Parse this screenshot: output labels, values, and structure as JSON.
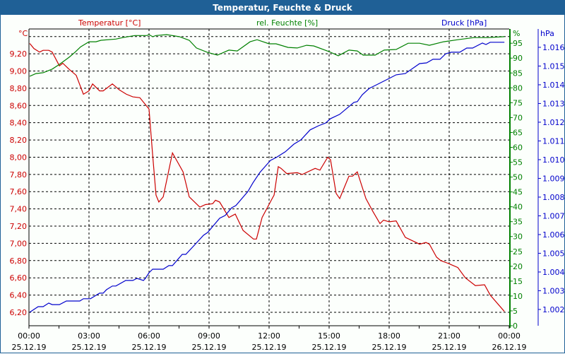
{
  "window_title": "Temperatur, Feuchte & Druck",
  "chart_data": {
    "type": "line",
    "title": "Temperatur, Feuchte & Druck",
    "xlabel": "",
    "x_unit": "hours since 25.12.19 00:00",
    "xlim": [
      0,
      24
    ],
    "x_ticks": [
      {
        "h": 0,
        "time": "00:00",
        "date": "25.12.19"
      },
      {
        "h": 3,
        "time": "03:00",
        "date": "25.12.19"
      },
      {
        "h": 6,
        "time": "06:00",
        "date": "25.12.19"
      },
      {
        "h": 9,
        "time": "09:00",
        "date": "25.12.19"
      },
      {
        "h": 12,
        "time": "12:00",
        "date": "25.12.19"
      },
      {
        "h": 15,
        "time": "15:00",
        "date": "25.12.19"
      },
      {
        "h": 18,
        "time": "18:00",
        "date": "25.12.19"
      },
      {
        "h": 21,
        "time": "21:00",
        "date": "25.12.19"
      },
      {
        "h": 24,
        "time": "00:00",
        "date": "26.12.19"
      }
    ],
    "grid": true,
    "series": [
      {
        "name": "Temperatur [°C]",
        "unit": "°C",
        "color": "#cc0000",
        "axis": "left",
        "ylim": [
          6.044,
          9.488
        ],
        "ticks": [
          "6,20",
          "6,40",
          "6,60",
          "6,80",
          "7,00",
          "7,20",
          "7,40",
          "7,60",
          "7,80",
          "8,00",
          "8,20",
          "8,40",
          "8,60",
          "8,80",
          "9,00",
          "9,20"
        ],
        "tick_values": [
          6.2,
          6.4,
          6.6,
          6.8,
          7.0,
          7.2,
          7.4,
          7.6,
          7.8,
          8.0,
          8.2,
          8.4,
          8.6,
          8.8,
          9.0,
          9.2
        ],
        "points": [
          [
            0.04,
            9.32
          ],
          [
            0.25,
            9.26
          ],
          [
            0.53,
            9.22
          ],
          [
            0.71,
            9.24
          ],
          [
            0.99,
            9.24
          ],
          [
            1.16,
            9.22
          ],
          [
            1.52,
            9.06
          ],
          [
            1.69,
            9.09
          ],
          [
            2.01,
            9.02
          ],
          [
            2.36,
            8.95
          ],
          [
            2.72,
            8.73
          ],
          [
            3.0,
            8.77
          ],
          [
            3.18,
            8.85
          ],
          [
            3.53,
            8.77
          ],
          [
            3.71,
            8.77
          ],
          [
            4.17,
            8.85
          ],
          [
            4.52,
            8.78
          ],
          [
            4.87,
            8.73
          ],
          [
            5.19,
            8.7
          ],
          [
            5.54,
            8.69
          ],
          [
            6.0,
            8.56
          ],
          [
            6.18,
            8.03
          ],
          [
            6.35,
            7.56
          ],
          [
            6.49,
            7.48
          ],
          [
            6.71,
            7.54
          ],
          [
            7.17,
            8.05
          ],
          [
            7.7,
            7.83
          ],
          [
            8.01,
            7.54
          ],
          [
            8.54,
            7.42
          ],
          [
            8.82,
            7.45
          ],
          [
            9.18,
            7.46
          ],
          [
            9.32,
            7.5
          ],
          [
            9.53,
            7.48
          ],
          [
            9.99,
            7.3
          ],
          [
            10.31,
            7.34
          ],
          [
            10.7,
            7.15
          ],
          [
            11.22,
            7.05
          ],
          [
            11.37,
            7.05
          ],
          [
            11.65,
            7.3
          ],
          [
            12.11,
            7.5
          ],
          [
            12.25,
            7.56
          ],
          [
            12.46,
            7.89
          ],
          [
            12.6,
            7.87
          ],
          [
            12.88,
            7.81
          ],
          [
            13.41,
            7.82
          ],
          [
            13.66,
            7.8
          ],
          [
            14.3,
            7.87
          ],
          [
            14.54,
            7.85
          ],
          [
            14.93,
            8.0
          ],
          [
            15.07,
            7.97
          ],
          [
            15.35,
            7.58
          ],
          [
            15.53,
            7.52
          ],
          [
            15.99,
            7.78
          ],
          [
            16.17,
            7.78
          ],
          [
            16.41,
            7.83
          ],
          [
            16.84,
            7.52
          ],
          [
            17.19,
            7.37
          ],
          [
            17.54,
            7.23
          ],
          [
            17.72,
            7.27
          ],
          [
            18.0,
            7.25
          ],
          [
            18.35,
            7.26
          ],
          [
            18.81,
            7.07
          ],
          [
            19.17,
            7.03
          ],
          [
            19.52,
            6.99
          ],
          [
            19.84,
            7.01
          ],
          [
            20.01,
            6.99
          ],
          [
            20.37,
            6.84
          ],
          [
            20.58,
            6.8
          ],
          [
            20.93,
            6.77
          ],
          [
            21.43,
            6.72
          ],
          [
            21.81,
            6.6
          ],
          [
            22.31,
            6.51
          ],
          [
            22.77,
            6.52
          ],
          [
            23.05,
            6.4
          ],
          [
            23.76,
            6.21
          ]
        ]
      },
      {
        "name": "rel. Feuchte [%]",
        "unit": "%",
        "color": "#008000",
        "axis": "right",
        "ylim": [
          0,
          99.8
        ],
        "ticks": [
          "0",
          "5",
          "10",
          "15",
          "20",
          "25",
          "30",
          "35",
          "40",
          "45",
          "50",
          "55",
          "60",
          "65",
          "70",
          "75",
          "80",
          "85",
          "90",
          "95"
        ],
        "tick_values": [
          0,
          5,
          10,
          15,
          20,
          25,
          30,
          35,
          40,
          45,
          50,
          55,
          60,
          65,
          70,
          75,
          80,
          85,
          90,
          95
        ],
        "points": [
          [
            0.04,
            83.9
          ],
          [
            0.35,
            84.8
          ],
          [
            0.71,
            85.1
          ],
          [
            1.16,
            86.3
          ],
          [
            1.52,
            87.9
          ],
          [
            2.01,
            90.3
          ],
          [
            2.29,
            91.9
          ],
          [
            2.58,
            93.8
          ],
          [
            3.0,
            95.5
          ],
          [
            3.35,
            95.5
          ],
          [
            3.6,
            96.0
          ],
          [
            4.34,
            96.4
          ],
          [
            4.69,
            96.9
          ],
          [
            5.29,
            97.6
          ],
          [
            5.89,
            97.6
          ],
          [
            6.0,
            97.9
          ],
          [
            6.18,
            97.2
          ],
          [
            6.35,
            97.6
          ],
          [
            6.88,
            97.9
          ],
          [
            7.52,
            97.2
          ],
          [
            8.01,
            96.0
          ],
          [
            8.37,
            93.4
          ],
          [
            8.93,
            91.9
          ],
          [
            9.42,
            91.0
          ],
          [
            9.99,
            92.7
          ],
          [
            10.41,
            92.4
          ],
          [
            11.05,
            95.5
          ],
          [
            11.4,
            96.2
          ],
          [
            12.0,
            94.8
          ],
          [
            12.35,
            94.8
          ],
          [
            12.95,
            93.6
          ],
          [
            13.41,
            93.4
          ],
          [
            13.87,
            94.3
          ],
          [
            14.23,
            94.1
          ],
          [
            15.0,
            92.2
          ],
          [
            15.46,
            90.8
          ],
          [
            15.99,
            92.7
          ],
          [
            16.41,
            92.4
          ],
          [
            16.7,
            91.0
          ],
          [
            17.3,
            91.0
          ],
          [
            17.75,
            92.7
          ],
          [
            18.35,
            92.9
          ],
          [
            18.95,
            95.0
          ],
          [
            19.52,
            95.0
          ],
          [
            20.01,
            94.3
          ],
          [
            20.72,
            95.5
          ],
          [
            21.43,
            96.2
          ],
          [
            22.24,
            96.9
          ],
          [
            22.94,
            96.9
          ],
          [
            23.76,
            97.2
          ]
        ]
      },
      {
        "name": "Druck [hPa]",
        "unit": "hPa",
        "color": "#0000cc",
        "axis": "right-outer",
        "ylim": [
          1.00113,
          1.01698
        ],
        "ticks": [
          "1.002",
          "1.003",
          "1.004",
          "1.005",
          "1.006",
          "1.007",
          "1.008",
          "1.009",
          "1.010",
          "1.011",
          "1.012",
          "1.013",
          "1.014",
          "1.015",
          "1.016"
        ],
        "tick_values": [
          1.002,
          1.003,
          1.004,
          1.005,
          1.006,
          1.007,
          1.008,
          1.009,
          1.01,
          1.011,
          1.012,
          1.013,
          1.014,
          1.015,
          1.016
        ],
        "points": [
          [
            0.04,
            1.00185
          ],
          [
            0.46,
            1.00215
          ],
          [
            0.71,
            1.00215
          ],
          [
            0.99,
            1.00234
          ],
          [
            1.16,
            1.00226
          ],
          [
            1.52,
            1.00226
          ],
          [
            1.87,
            1.00245
          ],
          [
            2.54,
            1.00245
          ],
          [
            2.72,
            1.00257
          ],
          [
            3.07,
            1.00257
          ],
          [
            3.53,
            1.00287
          ],
          [
            3.71,
            1.00287
          ],
          [
            3.88,
            1.00306
          ],
          [
            4.17,
            1.00325
          ],
          [
            4.34,
            1.00325
          ],
          [
            4.84,
            1.00355
          ],
          [
            5.19,
            1.00355
          ],
          [
            5.4,
            1.00366
          ],
          [
            5.72,
            1.00355
          ],
          [
            5.82,
            1.00366
          ],
          [
            6.0,
            1.00396
          ],
          [
            6.18,
            1.00415
          ],
          [
            6.71,
            1.00415
          ],
          [
            6.99,
            1.00434
          ],
          [
            7.17,
            1.00434
          ],
          [
            7.66,
            1.00494
          ],
          [
            7.84,
            1.00494
          ],
          [
            8.37,
            1.00555
          ],
          [
            8.72,
            1.00596
          ],
          [
            8.93,
            1.00611
          ],
          [
            9.53,
            1.00687
          ],
          [
            9.81,
            1.00702
          ],
          [
            10.13,
            1.00743
          ],
          [
            10.34,
            1.00755
          ],
          [
            10.94,
            1.0083
          ],
          [
            11.19,
            1.00876
          ],
          [
            11.54,
            1.00932
          ],
          [
            12.07,
            1.00996
          ],
          [
            12.35,
            1.01011
          ],
          [
            12.81,
            1.01042
          ],
          [
            13.24,
            1.01083
          ],
          [
            13.59,
            1.01106
          ],
          [
            14.05,
            1.01159
          ],
          [
            14.47,
            1.01181
          ],
          [
            14.83,
            1.01196
          ],
          [
            15.07,
            1.01219
          ],
          [
            15.53,
            1.01242
          ],
          [
            16.24,
            1.01306
          ],
          [
            16.41,
            1.0131
          ],
          [
            16.66,
            1.01347
          ],
          [
            17.01,
            1.01381
          ],
          [
            17.3,
            1.01396
          ],
          [
            18.0,
            1.01434
          ],
          [
            18.35,
            1.01453
          ],
          [
            18.81,
            1.0146
          ],
          [
            19.52,
            1.01513
          ],
          [
            19.87,
            1.01517
          ],
          [
            20.19,
            1.01536
          ],
          [
            20.54,
            1.01536
          ],
          [
            20.83,
            1.01566
          ],
          [
            21.11,
            1.01574
          ],
          [
            21.53,
            1.01574
          ],
          [
            21.88,
            1.01596
          ],
          [
            22.17,
            1.01596
          ],
          [
            22.66,
            1.01623
          ],
          [
            22.84,
            1.01615
          ],
          [
            23.05,
            1.01627
          ],
          [
            23.76,
            1.01627
          ]
        ]
      }
    ],
    "axis_units": {
      "left": "°C",
      "right": "%",
      "right_outer": "hPa"
    }
  }
}
